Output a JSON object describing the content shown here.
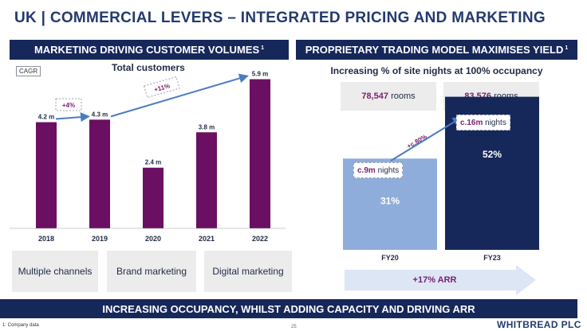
{
  "title": "UK | COMMERCIAL LEVERS – INTEGRATED PRICING AND MARKETING",
  "left_header": "MARKETING DRIVING CUSTOMER VOLUMES",
  "left_header_sup": "1",
  "right_header": "PROPRIETARY TRADING MODEL MAXIMISES YIELD",
  "right_header_sup": "1",
  "cagr_tag": "CAGR",
  "chart_data": [
    {
      "type": "bar",
      "title": "Total customers",
      "categories": [
        "2018",
        "2019",
        "2020",
        "2021",
        "2022"
      ],
      "values": [
        4.2,
        4.3,
        2.4,
        3.8,
        5.9
      ],
      "data_labels": [
        "4.2 m",
        "4.3 m",
        "2.4 m",
        "3.8 m",
        "5.9 m"
      ],
      "annotations": [
        "+4%",
        "+11%"
      ],
      "color": "#6b0f62",
      "ylim": [
        0,
        6.2
      ]
    },
    {
      "type": "bar",
      "title": "Increasing % of site nights at 100% occupancy",
      "categories": [
        "FY20",
        "FY23"
      ],
      "values": [
        31,
        52
      ],
      "data_labels": [
        "31%",
        "52%"
      ],
      "colors": [
        "#8fadda",
        "#16275a"
      ],
      "ylim": [
        0,
        60
      ]
    }
  ],
  "rooms": [
    {
      "number": "78,547",
      "unit": "rooms"
    },
    {
      "number": "83,576",
      "unit": "rooms"
    }
  ],
  "nights": [
    {
      "number": "c.9m",
      "unit": "nights"
    },
    {
      "number": "c.16m",
      "unit": "nights"
    }
  ],
  "growth_label": "+c.80%",
  "arr_label": "+17% ARR",
  "levers": [
    "Multiple channels",
    "Brand marketing",
    "Digital marketing"
  ],
  "footer": "INCREASING OCCUPANCY, WHILST ADDING CAPACITY AND DRIVING ARR",
  "footnote": "1: Company data",
  "page_number": "25",
  "brand": "WHITBREAD PLC",
  "colors": {
    "navy": "#16275a",
    "purple": "#6b0f62",
    "light_blue": "#8fadda",
    "arrow_blue": "#4a7cc2"
  }
}
